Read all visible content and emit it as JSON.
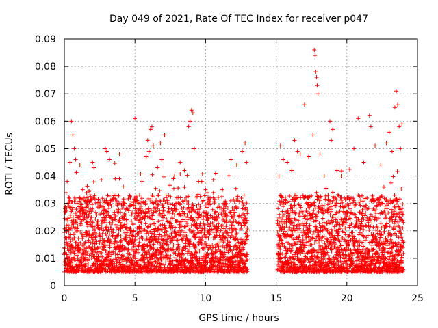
{
  "chart_data": {
    "type": "scatter",
    "title": "Day 049 of 2021, Rate Of TEC Index for receiver p047",
    "xlabel": "GPS time / hours",
    "ylabel": "ROTI / TECUs",
    "xlim": [
      0,
      25
    ],
    "ylim": [
      0,
      0.09
    ],
    "x_ticks": [
      0,
      5,
      10,
      15,
      20,
      25
    ],
    "y_ticks": [
      0,
      0.01,
      0.02,
      0.03,
      0.04,
      0.05,
      0.06,
      0.07,
      0.08,
      0.09
    ],
    "x_tick_labels": [
      "0",
      "5",
      "10",
      "15",
      "20",
      "25"
    ],
    "y_tick_labels": [
      "0",
      "0.01",
      "0.02",
      "0.03",
      "0.04",
      "0.05",
      "0.06",
      "0.07",
      "0.08",
      "0.09"
    ],
    "grid": true,
    "marker": "+",
    "marker_color": "#ff0000",
    "data_gap_hours": [
      13.0,
      15.1
    ],
    "series": [
      {
        "name": "ROTI",
        "points": [
          [
            0.2,
            0.038
          ],
          [
            0.3,
            0.029
          ],
          [
            0.4,
            0.045
          ],
          [
            0.5,
            0.06
          ],
          [
            0.6,
            0.055
          ],
          [
            0.7,
            0.05
          ],
          [
            0.8,
            0.046
          ],
          [
            1.1,
            0.044
          ],
          [
            1.3,
            0.035
          ],
          [
            1.6,
            0.032
          ],
          [
            2.0,
            0.045
          ],
          [
            2.1,
            0.043
          ],
          [
            2.9,
            0.05
          ],
          [
            3.0,
            0.049
          ],
          [
            3.2,
            0.046
          ],
          [
            3.6,
            0.039
          ],
          [
            3.9,
            0.048
          ],
          [
            3.9,
            0.039
          ],
          [
            5.0,
            0.061
          ],
          [
            5.5,
            0.038
          ],
          [
            5.8,
            0.047
          ],
          [
            5.9,
            0.053
          ],
          [
            6.0,
            0.049
          ],
          [
            6.1,
            0.057
          ],
          [
            6.2,
            0.058
          ],
          [
            6.3,
            0.051
          ],
          [
            6.6,
            0.043
          ],
          [
            6.8,
            0.052
          ],
          [
            6.9,
            0.046
          ],
          [
            7.1,
            0.055
          ],
          [
            7.8,
            0.04
          ],
          [
            8.2,
            0.045
          ],
          [
            8.5,
            0.042
          ],
          [
            8.8,
            0.058
          ],
          [
            8.9,
            0.06
          ],
          [
            9.0,
            0.064
          ],
          [
            9.1,
            0.063
          ],
          [
            9.2,
            0.05
          ],
          [
            9.5,
            0.038
          ],
          [
            10.0,
            0.035
          ],
          [
            10.7,
            0.041
          ],
          [
            11.2,
            0.035
          ],
          [
            11.8,
            0.046
          ],
          [
            12.2,
            0.044
          ],
          [
            12.6,
            0.049
          ],
          [
            12.8,
            0.052
          ],
          [
            12.9,
            0.045
          ],
          [
            15.2,
            0.04
          ],
          [
            15.3,
            0.051
          ],
          [
            15.5,
            0.046
          ],
          [
            15.8,
            0.045
          ],
          [
            16.1,
            0.042
          ],
          [
            16.3,
            0.053
          ],
          [
            16.5,
            0.049
          ],
          [
            16.7,
            0.048
          ],
          [
            17.0,
            0.066
          ],
          [
            17.3,
            0.047
          ],
          [
            17.6,
            0.055
          ],
          [
            17.7,
            0.086
          ],
          [
            17.75,
            0.084
          ],
          [
            17.8,
            0.078
          ],
          [
            17.85,
            0.076
          ],
          [
            17.9,
            0.073
          ],
          [
            17.95,
            0.07
          ],
          [
            18.1,
            0.048
          ],
          [
            18.4,
            0.04
          ],
          [
            18.8,
            0.06
          ],
          [
            18.9,
            0.053
          ],
          [
            19.0,
            0.057
          ],
          [
            19.3,
            0.042
          ],
          [
            19.6,
            0.04
          ],
          [
            20.5,
            0.05
          ],
          [
            20.8,
            0.061
          ],
          [
            21.2,
            0.045
          ],
          [
            21.6,
            0.062
          ],
          [
            21.7,
            0.058
          ],
          [
            22.0,
            0.051
          ],
          [
            22.4,
            0.044
          ],
          [
            22.8,
            0.052
          ],
          [
            23.0,
            0.056
          ],
          [
            23.2,
            0.049
          ],
          [
            23.4,
            0.065
          ],
          [
            23.5,
            0.071
          ],
          [
            23.6,
            0.066
          ],
          [
            23.7,
            0.058
          ],
          [
            23.8,
            0.05
          ],
          [
            23.9,
            0.059
          ]
        ]
      }
    ],
    "note": "Dense red '+' markers cover the 0.005-0.03 TECU band for 0-13 h and 15.1-24 h; listed points are the readable upper-envelope values. The background band is drawn procedurally."
  }
}
